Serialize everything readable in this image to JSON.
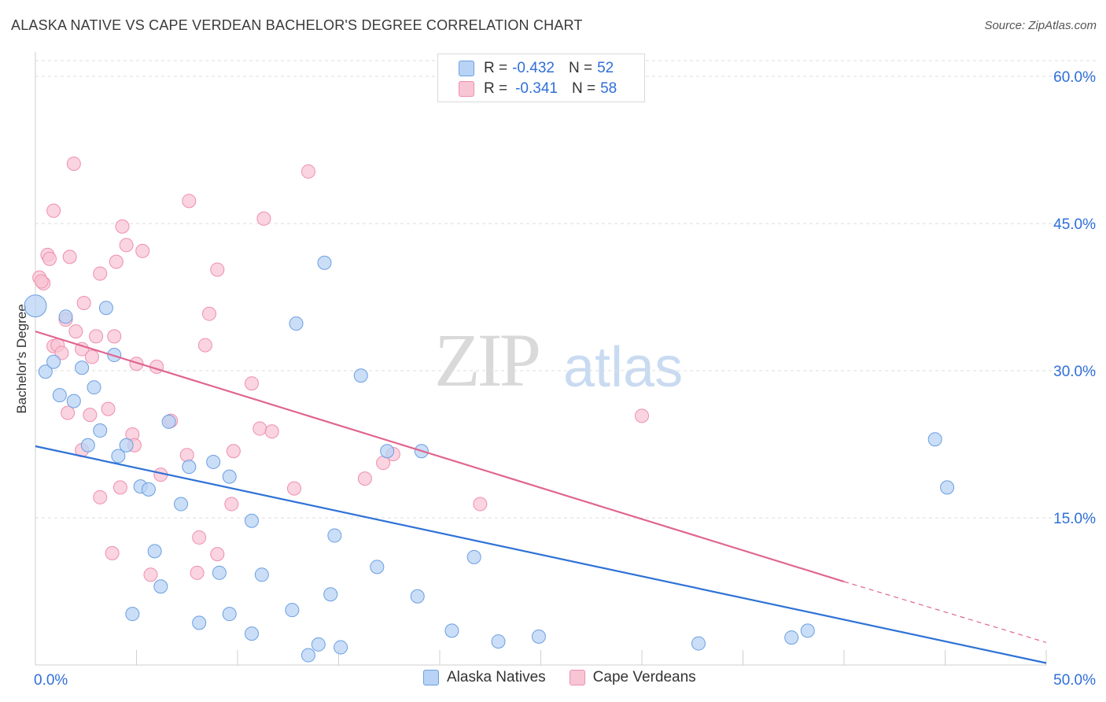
{
  "header": {
    "title": "ALASKA NATIVE VS CAPE VERDEAN BACHELOR'S DEGREE CORRELATION CHART",
    "source": "Source: ZipAtlas.com"
  },
  "watermark": {
    "zip": "ZIP",
    "atlas": "atlas"
  },
  "legend_top": [
    {
      "r_label": "R =",
      "r_value": "-0.432",
      "n_label": "N =",
      "n_value": "52"
    },
    {
      "r_label": "R =",
      "r_value": "-0.341",
      "n_label": "N =",
      "n_value": "58"
    }
  ],
  "legend_bottom": [
    {
      "label": "Alaska Natives"
    },
    {
      "label": "Cape Verdeans"
    }
  ],
  "colors": {
    "blue_fill": "#b8d3f5",
    "blue_stroke": "#6b9fe0",
    "blue_line": "#2f72d6",
    "pink_fill": "#f8c5d5",
    "pink_stroke": "#ee8fae",
    "pink_line": "#e0668f",
    "axis_text": "#2f6fd8",
    "grid": "#dcdcdc"
  },
  "chart_data": {
    "type": "scatter",
    "title": "ALASKA NATIVE VS CAPE VERDEAN BACHELOR'S DEGREE CORRELATION CHART",
    "xlabel": "",
    "ylabel": "Bachelor's Degree",
    "xlim": [
      0,
      50
    ],
    "ylim": [
      0,
      60
    ],
    "x_tick_labels": [
      "0.0%",
      "50.0%"
    ],
    "y_ticks": [
      15,
      30,
      45,
      60
    ],
    "y_tick_labels": [
      "15.0%",
      "30.0%",
      "45.0%",
      "60.0%"
    ],
    "grid": "horizontal dashed",
    "legend_position": "top-center",
    "series": [
      {
        "name": "Alaska Natives",
        "r": -0.432,
        "n": 52,
        "points": [
          [
            0.0,
            36.6
          ],
          [
            1.5,
            35.5
          ],
          [
            3.5,
            36.4
          ],
          [
            14.3,
            41.0
          ],
          [
            12.9,
            34.8
          ],
          [
            0.5,
            29.9
          ],
          [
            0.9,
            30.9
          ],
          [
            2.3,
            30.3
          ],
          [
            3.9,
            31.6
          ],
          [
            16.1,
            29.5
          ],
          [
            1.2,
            27.5
          ],
          [
            1.9,
            26.9
          ],
          [
            2.9,
            28.3
          ],
          [
            6.6,
            24.8
          ],
          [
            2.6,
            22.4
          ],
          [
            3.2,
            23.9
          ],
          [
            4.5,
            22.4
          ],
          [
            4.1,
            21.3
          ],
          [
            7.6,
            20.2
          ],
          [
            8.8,
            20.7
          ],
          [
            9.6,
            19.2
          ],
          [
            5.2,
            18.2
          ],
          [
            5.6,
            17.9
          ],
          [
            7.2,
            16.4
          ],
          [
            17.4,
            21.8
          ],
          [
            19.1,
            21.8
          ],
          [
            10.7,
            14.7
          ],
          [
            14.8,
            13.2
          ],
          [
            5.9,
            11.6
          ],
          [
            9.1,
            9.4
          ],
          [
            11.2,
            9.2
          ],
          [
            6.2,
            8.0
          ],
          [
            14.6,
            7.2
          ],
          [
            16.9,
            10.0
          ],
          [
            18.9,
            7.0
          ],
          [
            21.7,
            11.0
          ],
          [
            4.8,
            5.2
          ],
          [
            8.1,
            4.3
          ],
          [
            9.6,
            5.2
          ],
          [
            12.7,
            5.6
          ],
          [
            10.7,
            3.2
          ],
          [
            20.6,
            3.5
          ],
          [
            13.5,
            1.0
          ],
          [
            14.0,
            2.1
          ],
          [
            15.1,
            1.8
          ],
          [
            22.9,
            2.4
          ],
          [
            24.9,
            2.9
          ],
          [
            32.8,
            2.2
          ],
          [
            37.4,
            2.8
          ],
          [
            38.2,
            3.5
          ],
          [
            44.5,
            23.0
          ],
          [
            45.1,
            18.1
          ]
        ]
      },
      {
        "name": "Cape Verdeans",
        "r": -0.341,
        "n": 58,
        "points": [
          [
            1.9,
            51.1
          ],
          [
            13.5,
            50.3
          ],
          [
            0.9,
            46.3
          ],
          [
            7.6,
            47.3
          ],
          [
            11.3,
            45.5
          ],
          [
            4.3,
            44.7
          ],
          [
            4.5,
            42.8
          ],
          [
            5.3,
            42.2
          ],
          [
            0.6,
            41.8
          ],
          [
            0.7,
            41.4
          ],
          [
            1.7,
            41.6
          ],
          [
            4.0,
            41.1
          ],
          [
            3.2,
            39.9
          ],
          [
            9.0,
            40.3
          ],
          [
            0.2,
            39.5
          ],
          [
            0.4,
            38.9
          ],
          [
            2.4,
            36.9
          ],
          [
            8.6,
            35.8
          ],
          [
            1.5,
            35.2
          ],
          [
            2.0,
            34.0
          ],
          [
            3.0,
            33.5
          ],
          [
            3.9,
            33.5
          ],
          [
            0.9,
            32.5
          ],
          [
            1.1,
            32.6
          ],
          [
            8.4,
            32.6
          ],
          [
            2.3,
            32.2
          ],
          [
            1.3,
            31.8
          ],
          [
            2.8,
            31.4
          ],
          [
            5.0,
            30.7
          ],
          [
            6.0,
            30.4
          ],
          [
            10.7,
            28.7
          ],
          [
            3.6,
            26.1
          ],
          [
            1.6,
            25.7
          ],
          [
            2.7,
            25.5
          ],
          [
            6.7,
            24.9
          ],
          [
            11.1,
            24.1
          ],
          [
            11.7,
            23.8
          ],
          [
            4.8,
            23.5
          ],
          [
            4.9,
            22.4
          ],
          [
            2.3,
            21.9
          ],
          [
            7.5,
            21.4
          ],
          [
            9.8,
            21.8
          ],
          [
            17.7,
            21.5
          ],
          [
            17.2,
            20.6
          ],
          [
            6.2,
            19.4
          ],
          [
            16.3,
            19.0
          ],
          [
            4.2,
            18.1
          ],
          [
            12.8,
            18.0
          ],
          [
            3.2,
            17.1
          ],
          [
            9.7,
            16.4
          ],
          [
            22.0,
            16.4
          ],
          [
            8.1,
            13.0
          ],
          [
            3.8,
            11.4
          ],
          [
            9.0,
            11.3
          ],
          [
            5.7,
            9.2
          ],
          [
            8.0,
            9.4
          ],
          [
            30.0,
            25.4
          ],
          [
            0.3,
            39.1
          ]
        ]
      }
    ],
    "trend_lines": [
      {
        "series": "Alaska Natives",
        "x": [
          0,
          50
        ],
        "y": [
          22.3,
          0.2
        ]
      },
      {
        "series": "Cape Verdeans",
        "x": [
          0,
          40,
          50
        ],
        "y": [
          34.0,
          8.5,
          2.3
        ],
        "dashed_after_x": 40
      }
    ]
  }
}
